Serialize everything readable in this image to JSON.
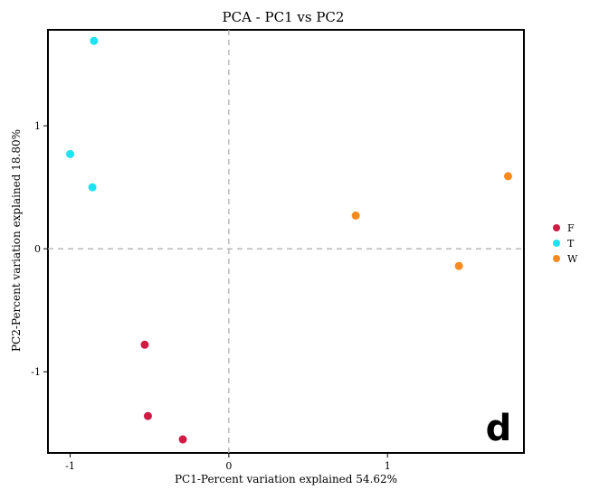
{
  "chart_data": {
    "type": "scatter",
    "title": "PCA - PC1 vs PC2",
    "xlabel": "PC1-Percent variation explained 54.62%",
    "ylabel": "PC2-Percent variation explained 18.80%",
    "xlim": [
      -1.14,
      1.86
    ],
    "ylim": [
      -1.66,
      1.78
    ],
    "xticks": [
      -1,
      0,
      1
    ],
    "yticks": [
      -1,
      0,
      1
    ],
    "reference_lines": {
      "x": 0,
      "y": 0,
      "style": "dashed"
    },
    "grid": false,
    "legend_position": "right",
    "panel_label": "d",
    "series": [
      {
        "name": "F",
        "color": "#d01c45",
        "points": [
          [
            -0.53,
            -0.78
          ],
          [
            -0.51,
            -1.36
          ],
          [
            -0.29,
            -1.55
          ]
        ]
      },
      {
        "name": "T",
        "color": "#1de3f2",
        "points": [
          [
            -0.85,
            1.69
          ],
          [
            -1.0,
            0.77
          ],
          [
            -0.86,
            0.5
          ]
        ]
      },
      {
        "name": "W",
        "color": "#f78a1e",
        "points": [
          [
            0.8,
            0.27
          ],
          [
            1.45,
            -0.14
          ],
          [
            1.76,
            0.59
          ]
        ]
      }
    ]
  }
}
